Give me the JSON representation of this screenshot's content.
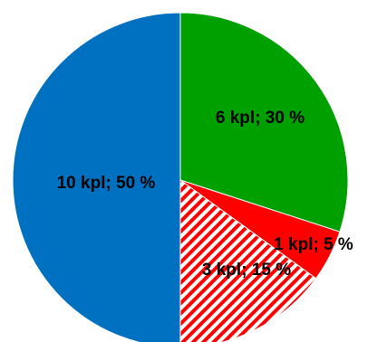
{
  "chart_data": {
    "type": "pie",
    "start_angle_deg": 0,
    "direction": "clockwise",
    "slices": [
      {
        "value": 6,
        "percent": 30,
        "label": "6 kpl; 30 %",
        "color": "#00a000",
        "pattern": "solid"
      },
      {
        "value": 1,
        "percent": 5,
        "label": "1 kpl; 5 %",
        "color": "#ff0000",
        "pattern": "solid"
      },
      {
        "value": 3,
        "percent": 15,
        "label": "3 kpl; 15 %",
        "color": "#ff0000",
        "pattern": "diagonal-hatch"
      },
      {
        "value": 10,
        "percent": 50,
        "label": "10 kpl; 50 %",
        "color": "#0070c0",
        "pattern": "solid"
      }
    ]
  }
}
